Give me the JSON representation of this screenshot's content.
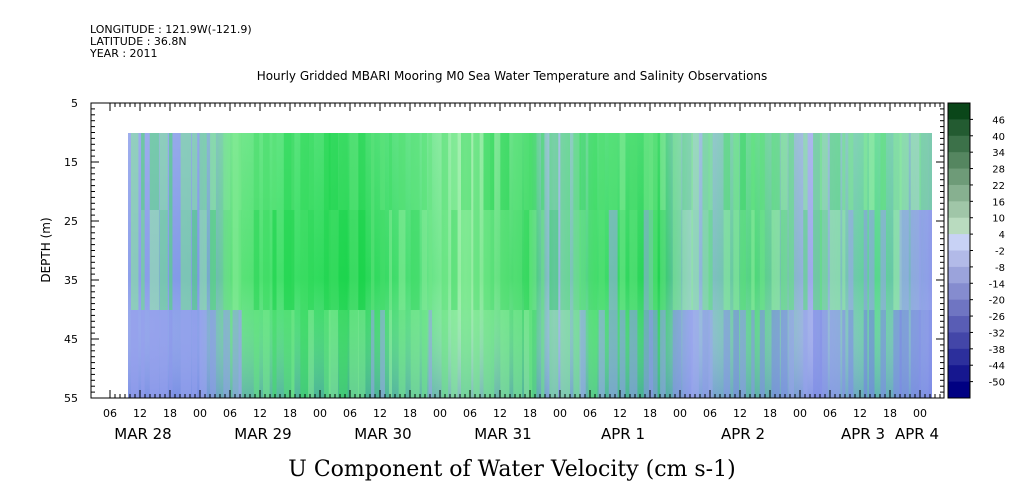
{
  "header": {
    "longitude": "LONGITUDE : 121.9W(-121.9)",
    "latitude": "LATITUDE : 36.8N",
    "year": "YEAR : 2011",
    "title": "Hourly Gridded MBARI Mooring M0 Sea Water Temperature and Salinity Observations"
  },
  "chart_data": {
    "type": "heatmap",
    "title": "Hourly Gridded MBARI Mooring M0 Sea Water Temperature and Salinity Observations",
    "xlabel": "U Component of Water Velocity (cm s-1)",
    "ylabel": "DEPTH (m)",
    "ylim": [
      55,
      5
    ],
    "y_ticks": [
      5,
      15,
      25,
      35,
      45,
      55
    ],
    "y_tick_labels": [
      "5",
      "15",
      "25",
      "35",
      "45",
      "55"
    ],
    "x_hour_ticks": [
      "06",
      "12",
      "18",
      "00",
      "06",
      "12",
      "18",
      "00",
      "06",
      "12",
      "18",
      "00",
      "06",
      "12",
      "18",
      "00",
      "06",
      "12",
      "18",
      "00",
      "06",
      "12",
      "18",
      "00",
      "06",
      "12",
      "18",
      "00"
    ],
    "x_day_labels": [
      "MAR 28",
      "MAR 29",
      "MAR 30",
      "MAR 31",
      "APR  1",
      "APR  2",
      "APR  3",
      "APR  4"
    ],
    "data_depth_range": [
      10,
      55
    ],
    "colorbar": {
      "labels": [
        "46",
        "40",
        "34",
        "28",
        "22",
        "16",
        "10",
        "4",
        "-2",
        "-8",
        "-14",
        "-20",
        "-26",
        "-32",
        "-38",
        "-44",
        "-50"
      ],
      "range": [
        -50,
        52
      ]
    },
    "velocity_profile_by_day": [
      {
        "day": "MAR 28",
        "surface": 12,
        "mid": 10,
        "bottom": -6
      },
      {
        "day": "MAR 29",
        "surface": 20,
        "mid": 26,
        "bottom": 14
      },
      {
        "day": "MAR 30",
        "surface": 18,
        "mid": 14,
        "bottom": 4
      },
      {
        "day": "MAR 31",
        "surface": 22,
        "mid": 18,
        "bottom": 8
      },
      {
        "day": "APR  1",
        "surface": 10,
        "mid": 6,
        "bottom": -8
      },
      {
        "day": "APR  2",
        "surface": 14,
        "mid": 10,
        "bottom": -14
      },
      {
        "day": "APR  3",
        "surface": 8,
        "mid": -4,
        "bottom": -22
      }
    ]
  }
}
